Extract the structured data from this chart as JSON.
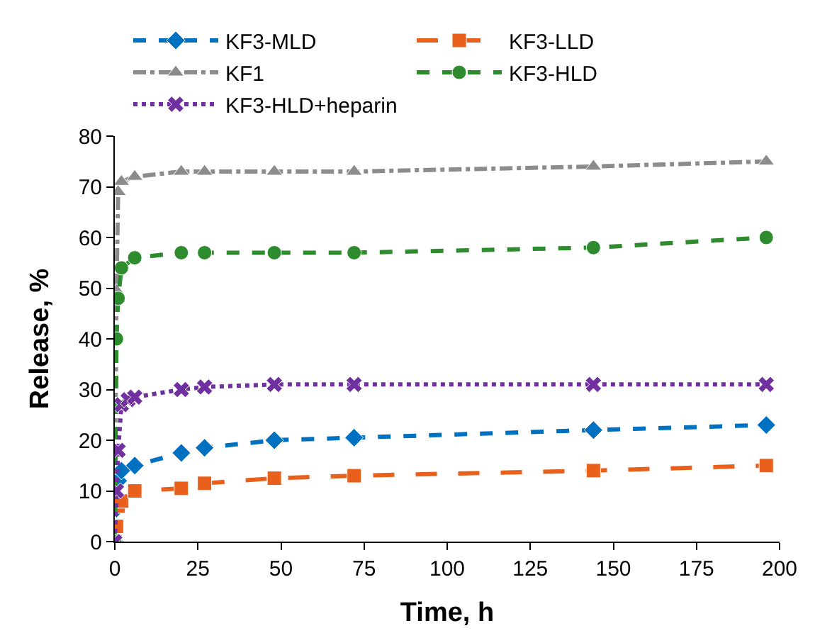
{
  "chart_data": {
    "type": "line",
    "xlabel": "Time, h",
    "ylabel": "Release, %",
    "xlim": [
      0,
      200
    ],
    "xticks": [
      0,
      25,
      50,
      75,
      100,
      125,
      150,
      175,
      200
    ],
    "ylim": [
      0,
      80
    ],
    "yticks": [
      0,
      10,
      20,
      30,
      40,
      50,
      60,
      70,
      80
    ],
    "legend": "top",
    "series": [
      {
        "name": "KF3-MLD",
        "color": "#0070c0",
        "marker": "diamond",
        "line_style": "dashed",
        "x": [
          0,
          0.5,
          1,
          2,
          6,
          20,
          27,
          48,
          72,
          144,
          196
        ],
        "values": [
          0,
          6.5,
          12,
          14,
          15,
          17.5,
          18.5,
          20,
          20.5,
          22,
          23
        ]
      },
      {
        "name": "KF3-LLD",
        "color": "#e8601c",
        "marker": "square",
        "line_style": "longdash",
        "x": [
          0,
          0.5,
          1,
          2,
          6,
          20,
          27,
          48,
          72,
          144,
          196
        ],
        "values": [
          0,
          3,
          7,
          8,
          10,
          10.5,
          11.5,
          12.5,
          13,
          14,
          15
        ]
      },
      {
        "name": "KF1",
        "color": "#8c8c8c",
        "marker": "triangle",
        "line_style": "dashdot",
        "x": [
          0,
          0.5,
          1,
          2,
          6,
          20,
          27,
          48,
          72,
          144,
          196
        ],
        "values": [
          0,
          49.5,
          69,
          71,
          72,
          73,
          73,
          73,
          73,
          74,
          75
        ]
      },
      {
        "name": "KF3-HLD",
        "color": "#2e8b2e",
        "marker": "circle",
        "line_style": "dashed",
        "x": [
          0,
          0.5,
          1,
          2,
          6,
          20,
          27,
          48,
          72,
          144,
          196
        ],
        "values": [
          0,
          40,
          48,
          54,
          56,
          57,
          57,
          57,
          57,
          58,
          60
        ]
      },
      {
        "name": "KF3-HLD+heparin",
        "color": "#7030a0",
        "marker": "cross",
        "line_style": "dotted",
        "x": [
          0,
          0.5,
          1,
          2,
          4,
          6,
          20,
          27,
          48,
          72,
          144,
          196
        ],
        "values": [
          0,
          10,
          18,
          27,
          28,
          28.5,
          30,
          30.5,
          31,
          31,
          31,
          31
        ]
      }
    ]
  }
}
